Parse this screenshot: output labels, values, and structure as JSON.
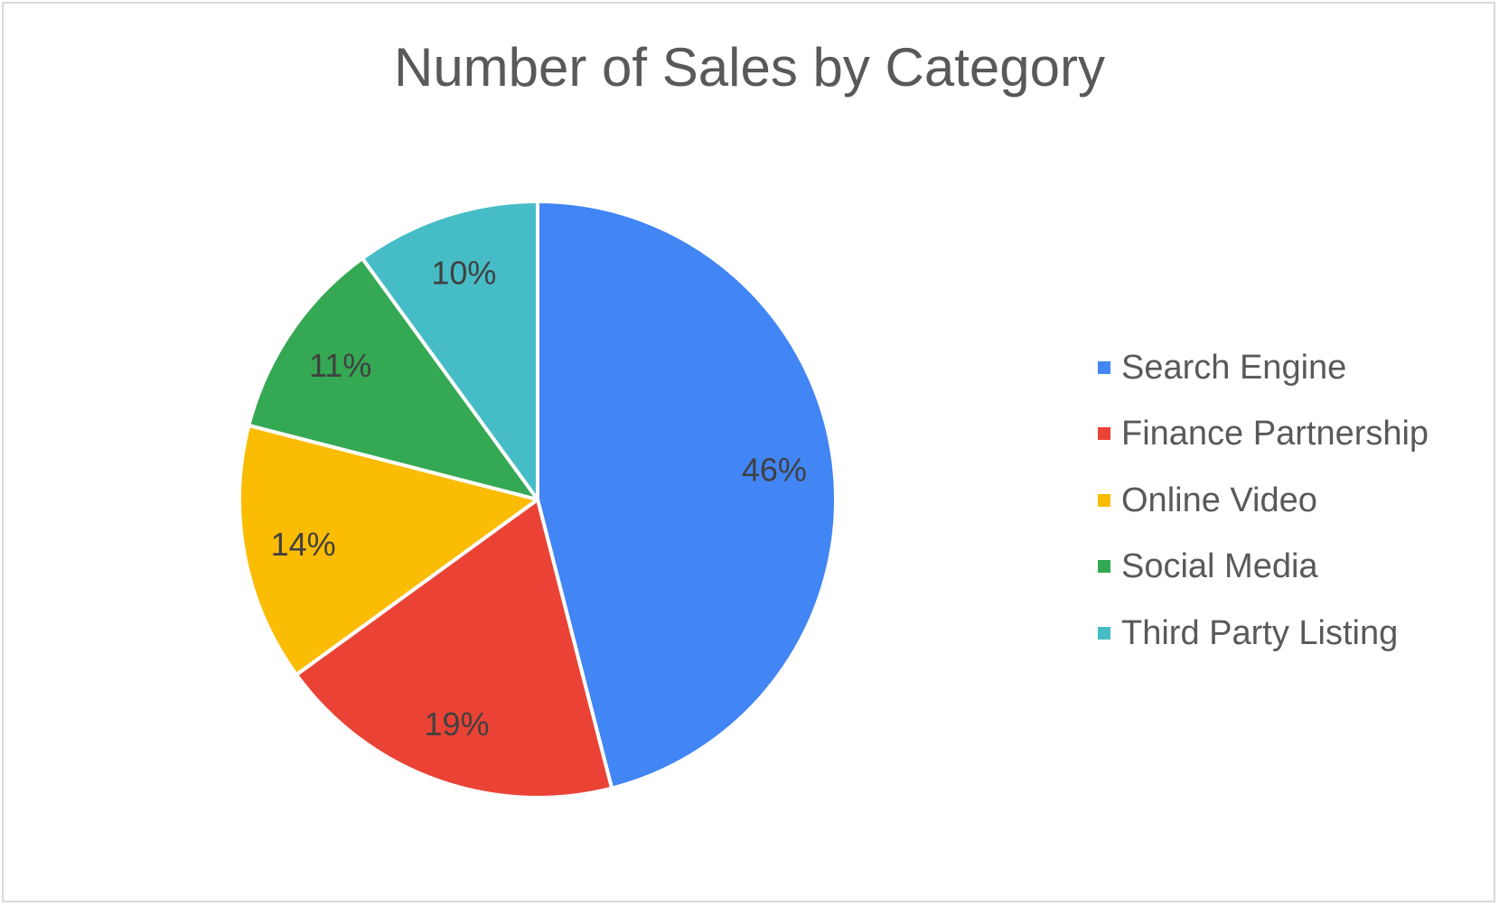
{
  "chart_data": {
    "type": "pie",
    "title": "Number of Sales by Category",
    "categories": [
      "Search Engine",
      "Finance Partnership",
      "Online Video",
      "Social Media",
      "Third Party Listing"
    ],
    "values": [
      46,
      19,
      14,
      11,
      10
    ],
    "labels": [
      "46%",
      "19%",
      "14%",
      "11%",
      "10%"
    ],
    "colors": [
      "#4285f4",
      "#ea4335",
      "#fbbc04",
      "#34a853",
      "#46bdc6"
    ],
    "legend_position": "right"
  }
}
